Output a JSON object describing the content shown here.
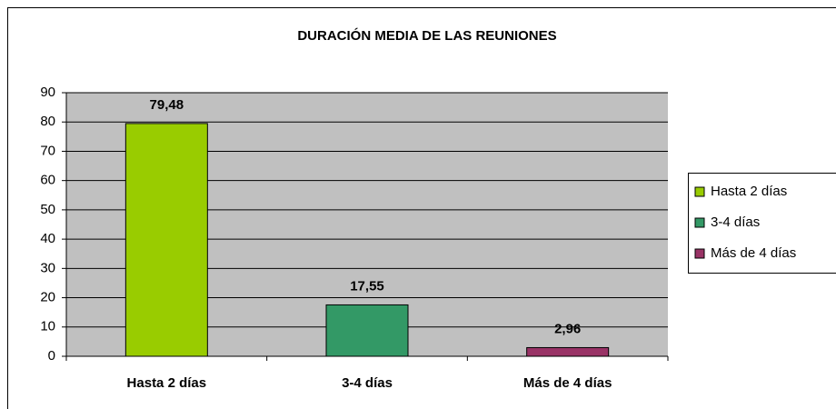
{
  "chart_data": {
    "type": "bar",
    "title": "DURACIÓN MEDIA DE LAS REUNIONES",
    "categories": [
      "Hasta 2 días",
      "3-4 días",
      "Más de 4 días"
    ],
    "values": [
      79.48,
      17.55,
      2.96
    ],
    "value_labels": [
      "79,48",
      "17,55",
      "2,96"
    ],
    "colors": [
      "#99cc00",
      "#339966",
      "#993366"
    ],
    "ylim": [
      0,
      90
    ],
    "yticks": [
      0,
      10,
      20,
      30,
      40,
      50,
      60,
      70,
      80,
      90
    ],
    "grid": true,
    "legend": "right"
  }
}
